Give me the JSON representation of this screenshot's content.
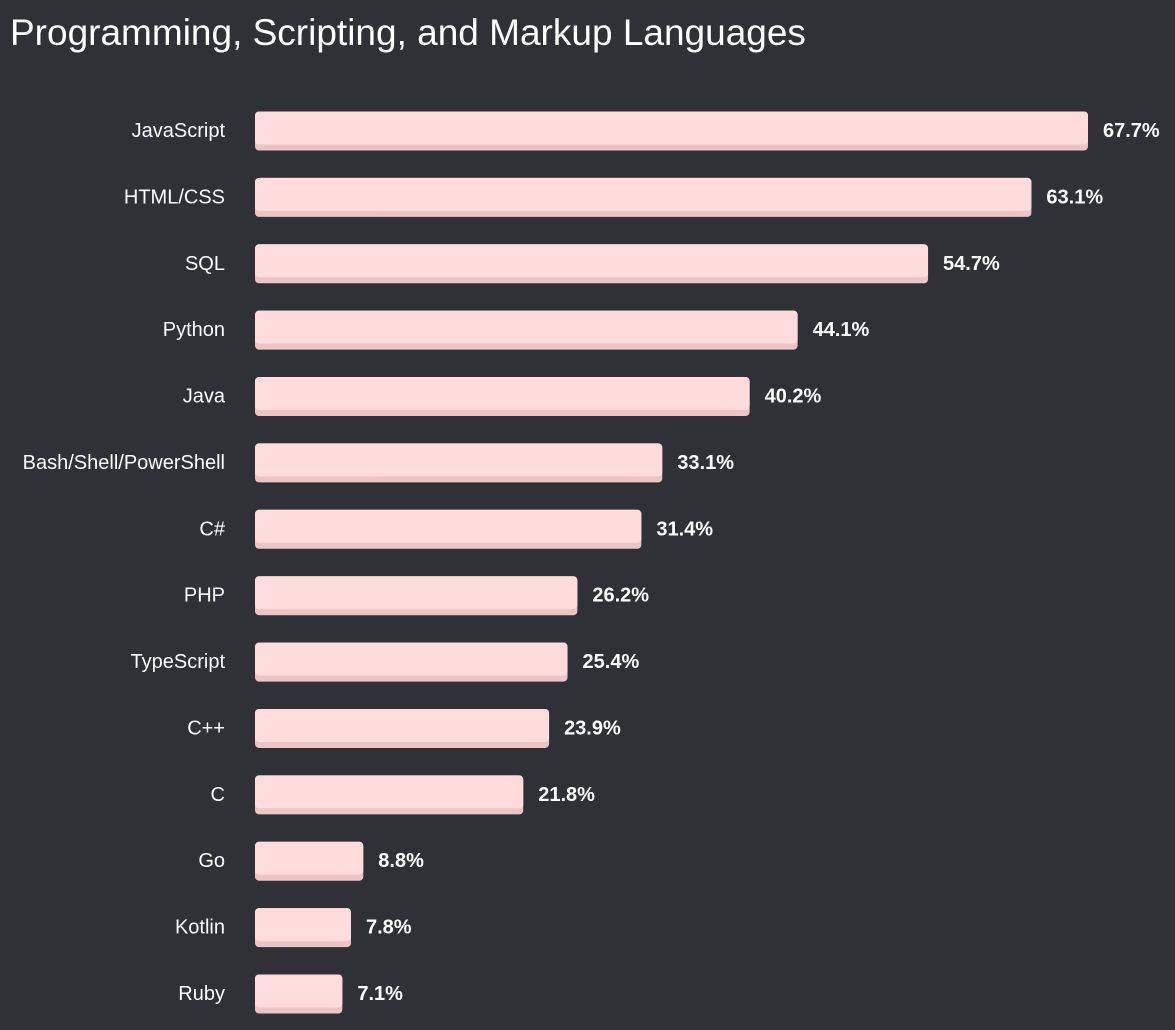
{
  "chart_data": {
    "type": "bar",
    "orientation": "horizontal",
    "title": "Programming, Scripting, and Markup Languages",
    "categories": [
      "JavaScript",
      "HTML/CSS",
      "SQL",
      "Python",
      "Java",
      "Bash/Shell/PowerShell",
      "C#",
      "PHP",
      "TypeScript",
      "C++",
      "C",
      "Go",
      "Kotlin",
      "Ruby"
    ],
    "values": [
      67.7,
      63.1,
      54.7,
      44.1,
      40.2,
      33.1,
      31.4,
      26.2,
      25.4,
      23.9,
      21.8,
      8.8,
      7.8,
      7.1
    ],
    "value_labels": [
      "67.7%",
      "63.1%",
      "54.7%",
      "44.1%",
      "40.2%",
      "33.1%",
      "31.4%",
      "26.2%",
      "25.4%",
      "23.9%",
      "21.8%",
      "8.8%",
      "7.8%",
      "7.1%"
    ],
    "xlim": [
      0,
      67.7
    ],
    "grid": false,
    "legend": "none",
    "colors": {
      "background": "#2f3136",
      "bar": "#ffdcdc",
      "bar_shadow": "#ecc4c4",
      "text": "#ffffff"
    }
  }
}
